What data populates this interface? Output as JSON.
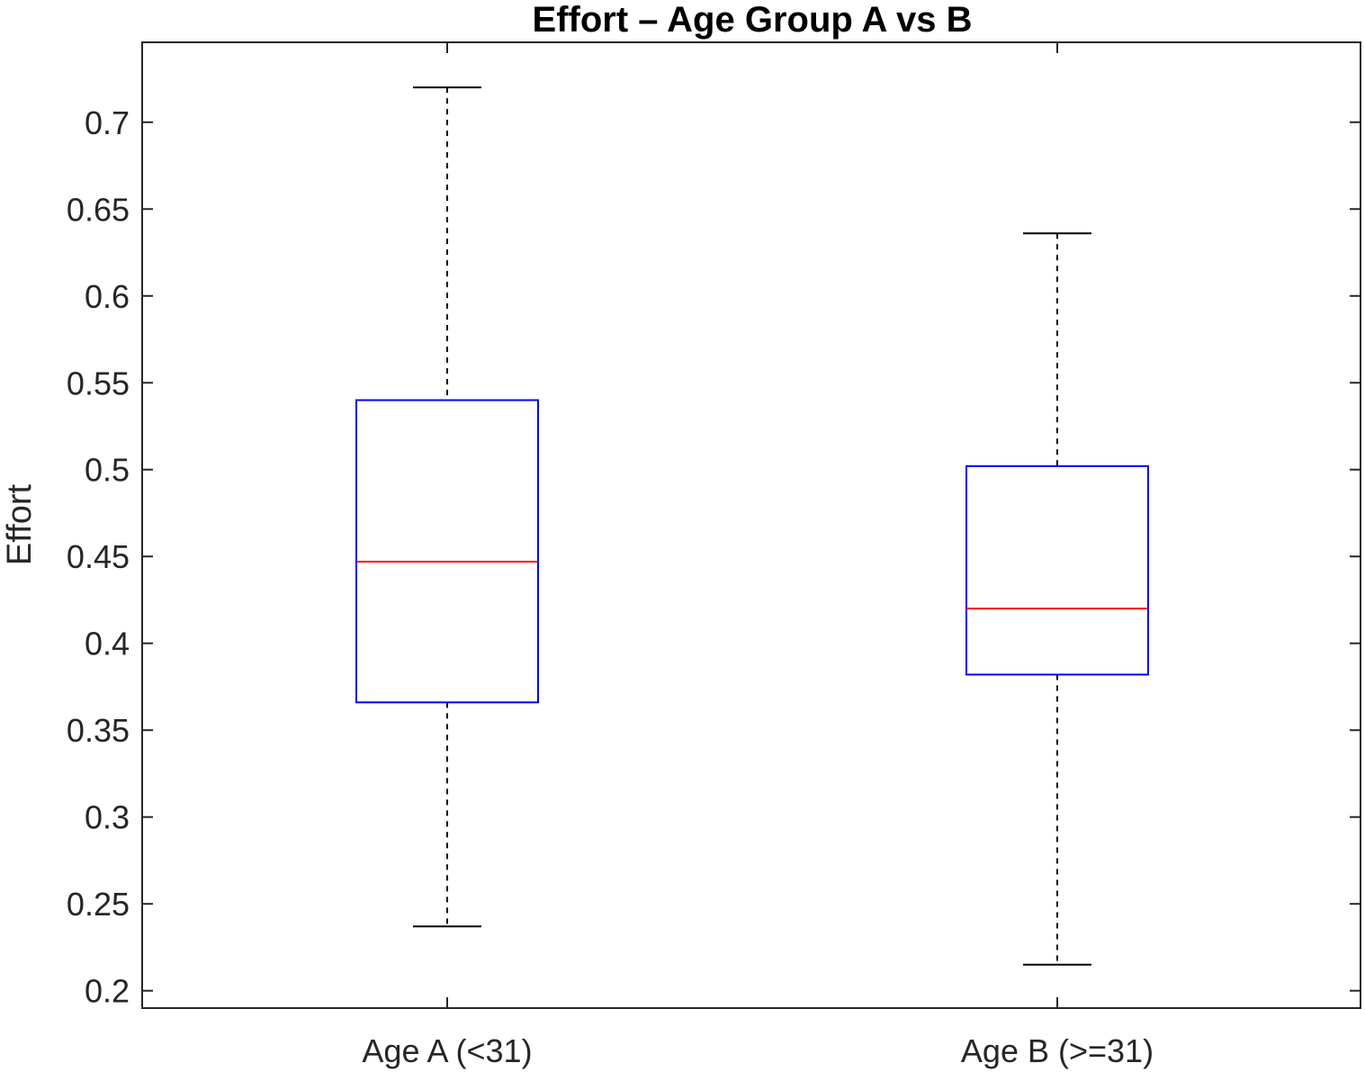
{
  "chart_data": {
    "type": "box",
    "title": "Effort  – Age Group A vs B",
    "xlabel": "",
    "ylabel": "Effort",
    "ylim": [
      0.19,
      0.746
    ],
    "yticks": [
      0.2,
      0.25,
      0.3,
      0.35,
      0.4,
      0.45,
      0.5,
      0.55,
      0.6,
      0.65,
      0.7
    ],
    "ytick_labels": [
      "0.2",
      "0.25",
      "0.3",
      "0.35",
      "0.4",
      "0.45",
      "0.5",
      "0.55",
      "0.6",
      "0.65",
      "0.7"
    ],
    "grid": false,
    "categories": [
      "Age A (<31)",
      "Age B (>=31)"
    ],
    "boxes": [
      {
        "whisker_low": 0.237,
        "q1": 0.366,
        "median": 0.447,
        "q3": 0.54,
        "whisker_high": 0.72
      },
      {
        "whisker_low": 0.215,
        "q1": 0.382,
        "median": 0.42,
        "q3": 0.502,
        "whisker_high": 0.636
      }
    ],
    "colors": {
      "box": "#0000ff",
      "median": "#ff0000",
      "whisker": "#000000",
      "axis": "#262626"
    }
  }
}
